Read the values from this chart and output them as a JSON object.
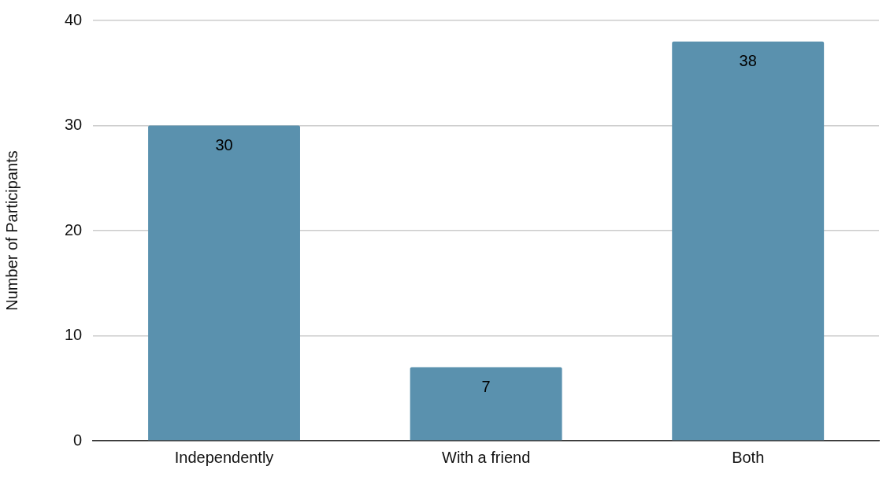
{
  "chart_data": {
    "type": "bar",
    "ylabel": "Number of Participants",
    "categories": [
      "Independently",
      "With a friend",
      "Both"
    ],
    "values": [
      30,
      7,
      38
    ],
    "color": "#5a91ae",
    "ylim": [
      0,
      40
    ],
    "yticks": [
      0,
      10,
      20,
      30,
      40
    ],
    "grid": "y",
    "data_labels": true,
    "legend": false
  }
}
